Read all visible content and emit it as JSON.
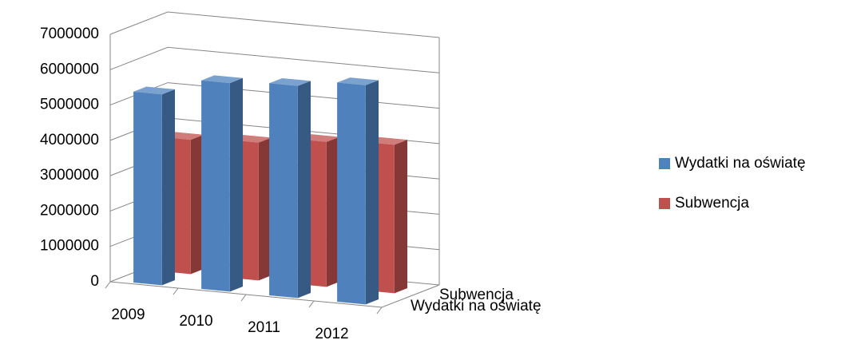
{
  "chart_data": {
    "type": "bar3d",
    "categories": [
      "2009",
      "2010",
      "2011",
      "2012"
    ],
    "series": [
      {
        "name": "Wydatki na oświatę",
        "color": "#4f81bd",
        "values": [
          5400000,
          5900000,
          6000000,
          6200000
        ]
      },
      {
        "name": "Subwencja",
        "color": "#c0504d",
        "values": [
          3800000,
          3900000,
          4100000,
          4200000
        ]
      }
    ],
    "ylim": [
      0,
      7000000
    ],
    "yticks": [
      0,
      1000000,
      2000000,
      3000000,
      4000000,
      5000000,
      6000000,
      7000000
    ],
    "grid": true,
    "legend": "right"
  }
}
